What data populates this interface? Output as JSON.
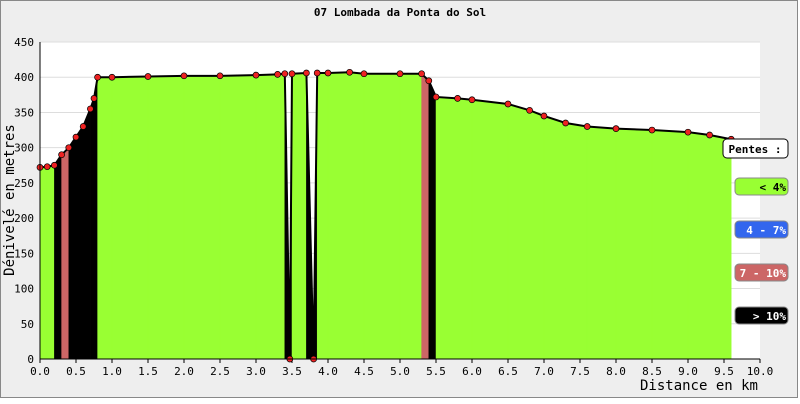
{
  "chart_data": {
    "type": "area-profile",
    "title": "07 Lombada da Ponta do Sol",
    "x_label": "Distance en km",
    "y_label": "Dénivelé en metres",
    "x": [
      0,
      0.1,
      0.2,
      0.3,
      0.4,
      0.5,
      0.6,
      0.7,
      0.75,
      0.8,
      1.0,
      1.5,
      2.0,
      2.5,
      3.0,
      3.3,
      3.4,
      3.47,
      3.5,
      3.7,
      3.8,
      3.85,
      4.0,
      4.3,
      4.5,
      5.0,
      5.3,
      5.4,
      5.5,
      5.8,
      6.0,
      6.5,
      6.8,
      7.0,
      7.3,
      7.6,
      8.0,
      8.5,
      9.0,
      9.3,
      9.6
    ],
    "values": [
      272,
      273,
      275,
      290,
      300,
      315,
      330,
      355,
      370,
      400,
      400,
      401,
      402,
      402,
      403,
      404,
      405,
      0,
      405,
      406,
      0,
      406,
      406,
      407,
      405,
      405,
      405,
      395,
      372,
      370,
      368,
      362,
      353,
      345,
      335,
      330,
      327,
      325,
      322,
      318,
      312
    ],
    "fill_color": "#99ff33",
    "line_color": "#000000",
    "point_color": "#ee2222",
    "xlim": [
      0,
      10
    ],
    "ylim": [
      0,
      450
    ],
    "xticks": [
      {
        "value": 0,
        "label": "0.0"
      },
      0.5,
      {
        "value": 1,
        "label": "1.0"
      },
      1.5,
      {
        "value": 2,
        "label": "2.0"
      },
      2.5,
      {
        "value": 3,
        "label": "3.0"
      },
      3.5,
      {
        "value": 4,
        "label": "4.0"
      },
      4.5,
      {
        "value": 5,
        "label": "5.0"
      },
      5.5,
      {
        "value": 6,
        "label": "6.0"
      },
      6.5,
      {
        "value": 7,
        "label": "7.0"
      },
      7.5,
      {
        "value": 8,
        "label": "8.0"
      },
      8.5,
      {
        "value": 9,
        "label": "9.0"
      },
      9.5,
      {
        "value": 10,
        "label": "10.0"
      }
    ],
    "yticks": [
      0,
      50,
      100,
      150,
      200,
      250,
      300,
      350,
      400,
      450
    ],
    "grid": true,
    "legend_title": "Pentes :",
    "slope_classes": [
      {
        "label": "< 4%",
        "max": 4,
        "color": "#99ff33"
      },
      {
        "label": "4 - 7%",
        "max": 7,
        "color": "#3366ee"
      },
      {
        "label": "7 - 10%",
        "max": 10,
        "color": "#cc6666"
      },
      {
        "label": "> 10%",
        "color": "#000000"
      }
    ]
  }
}
